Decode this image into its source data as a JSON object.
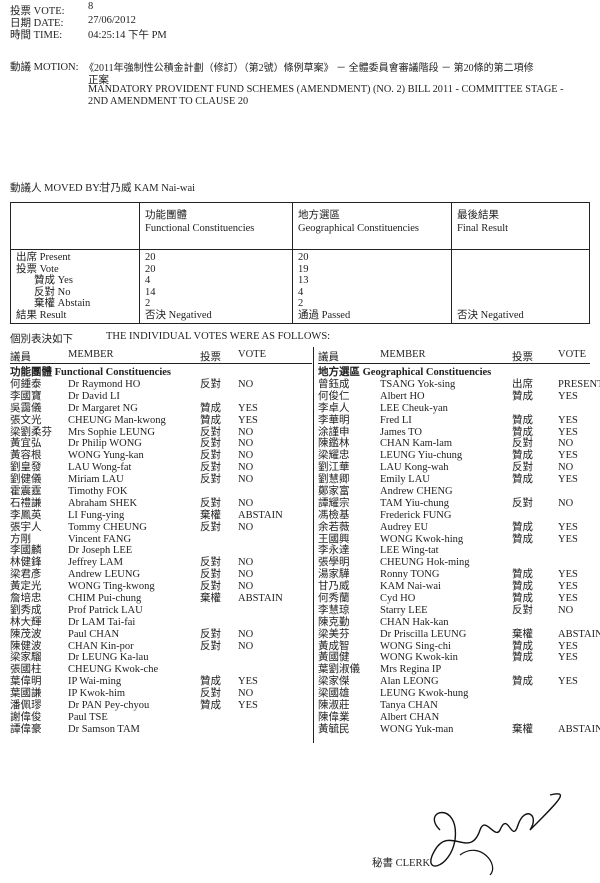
{
  "header": {
    "vote_label": "投票 VOTE:",
    "vote_value": "8",
    "date_label": "日期 DATE:",
    "date_value": "27/06/2012",
    "time_label": "時間 TIME:",
    "time_value": "04:25:14 下午 PM",
    "motion_label": "動議 MOTION:",
    "motion_zh_1": "《2011年強制性公積金計劃（修訂）（第2號）條例草案》 － 全體委員會審議階段 － 第20條的第二項修",
    "motion_zh_2": "正案",
    "motion_en_1": "MANDATORY PROVIDENT FUND SCHEMES (AMENDMENT) (NO. 2) BILL 2011 - COMMITTEE STAGE -",
    "motion_en_2": "2ND AMENDMENT TO CLAUSE 20",
    "moved_by_label": "動議人 MOVED BY:",
    "moved_by_value": "甘乃威   KAM Nai-wai"
  },
  "summary": {
    "col_fc_zh": "功能團體",
    "col_fc_en": "Functional Constituencies",
    "col_gc_zh": "地方選區",
    "col_gc_en": "Geographical Constituencies",
    "col_final_zh": "最後結果",
    "col_final_en": "Final Result",
    "row_labels": [
      "出席 Present",
      "投票 Vote",
      "贊成 Yes",
      "反對 No",
      "棄權 Abstain",
      "結果 Result"
    ],
    "fc": [
      "20",
      "20",
      "4",
      "14",
      "2",
      "否決 Negatived"
    ],
    "gc": [
      "20",
      "19",
      "13",
      "4",
      "2",
      "通過 Passed"
    ],
    "final": "否決 Negatived"
  },
  "individual_zh": "個別表決如下",
  "individual_en": "THE INDIVIDUAL VOTES WERE AS FOLLOWS:",
  "list_headers": {
    "member_zh": "議員",
    "member_en": "MEMBER",
    "vote_zh": "投票",
    "vote_en": "VOTE"
  },
  "functional": {
    "title": "功能團體 Functional Constituencies",
    "rows": [
      [
        "何鍾泰",
        "Dr Raymond HO",
        "反對",
        "NO"
      ],
      [
        "李國寶",
        "Dr David LI",
        "",
        ""
      ],
      [
        "吳靄儀",
        "Dr Margaret NG",
        "贊成",
        "YES"
      ],
      [
        "張文光",
        "CHEUNG Man-kwong",
        "贊成",
        "YES"
      ],
      [
        "梁劉柔芬",
        "Mrs Sophie LEUNG",
        "反對",
        "NO"
      ],
      [
        "黃宜弘",
        "Dr Philip WONG",
        "反對",
        "NO"
      ],
      [
        "黃容根",
        "WONG Yung-kan",
        "反對",
        "NO"
      ],
      [
        "劉皇發",
        "LAU Wong-fat",
        "反對",
        "NO"
      ],
      [
        "劉健儀",
        "Miriam LAU",
        "反對",
        "NO"
      ],
      [
        "霍震霆",
        "Timothy FOK",
        "",
        ""
      ],
      [
        "石禮謙",
        "Abraham SHEK",
        "反對",
        "NO"
      ],
      [
        "李鳳英",
        "LI Fung-ying",
        "棄權",
        "ABSTAIN"
      ],
      [
        "張宇人",
        "Tommy CHEUNG",
        "反對",
        "NO"
      ],
      [
        "方剛",
        "Vincent FANG",
        "",
        ""
      ],
      [
        "李國麟",
        "Dr Joseph LEE",
        "",
        ""
      ],
      [
        "林健鋒",
        "Jeffrey LAM",
        "反對",
        "NO"
      ],
      [
        "梁君彥",
        "Andrew LEUNG",
        "反對",
        "NO"
      ],
      [
        "黃定光",
        "WONG Ting-kwong",
        "反對",
        "NO"
      ],
      [
        "詹培忠",
        "CHIM Pui-chung",
        "棄權",
        "ABSTAIN"
      ],
      [
        "劉秀成",
        "Prof Patrick LAU",
        "",
        ""
      ],
      [
        "林大輝",
        "Dr LAM Tai-fai",
        "",
        ""
      ],
      [
        "陳茂波",
        "Paul CHAN",
        "反對",
        "NO"
      ],
      [
        "陳健波",
        "CHAN Kin-por",
        "反對",
        "NO"
      ],
      [
        "梁家騮",
        "Dr LEUNG Ka-lau",
        "",
        ""
      ],
      [
        "張國柱",
        "CHEUNG Kwok-che",
        "",
        ""
      ],
      [
        "葉偉明",
        "IP Wai-ming",
        "贊成",
        "YES"
      ],
      [
        "葉國謙",
        "IP Kwok-him",
        "反對",
        "NO"
      ],
      [
        "潘佩璆",
        "Dr PAN Pey-chyou",
        "贊成",
        "YES"
      ],
      [
        "謝偉俊",
        "Paul TSE",
        "",
        ""
      ],
      [
        "譚偉豪",
        "Dr Samson TAM",
        "",
        ""
      ]
    ]
  },
  "geographical": {
    "title": "地方選區 Geographical Constituencies",
    "rows": [
      [
        "曾鈺成",
        "TSANG Yok-sing",
        "出席",
        "PRESENT"
      ],
      [
        "何俊仁",
        "Albert HO",
        "贊成",
        "YES"
      ],
      [
        "李卓人",
        "LEE Cheuk-yan",
        "",
        ""
      ],
      [
        "李華明",
        "Fred LI",
        "贊成",
        "YES"
      ],
      [
        "涂謹申",
        "James TO",
        "贊成",
        "YES"
      ],
      [
        "陳鑑林",
        "CHAN Kam-lam",
        "反對",
        "NO"
      ],
      [
        "梁耀忠",
        "LEUNG Yiu-chung",
        "贊成",
        "YES"
      ],
      [
        "劉江華",
        "LAU Kong-wah",
        "反對",
        "NO"
      ],
      [
        "劉慧卿",
        "Emily LAU",
        "贊成",
        "YES"
      ],
      [
        "鄭家富",
        "Andrew CHENG",
        "",
        ""
      ],
      [
        "譚耀宗",
        "TAM Yiu-chung",
        "反對",
        "NO"
      ],
      [
        "馮檢基",
        "Frederick FUNG",
        "",
        ""
      ],
      [
        "余若薇",
        "Audrey EU",
        "贊成",
        "YES"
      ],
      [
        "王國興",
        "WONG Kwok-hing",
        "贊成",
        "YES"
      ],
      [
        "李永達",
        "LEE Wing-tat",
        "",
        ""
      ],
      [
        "張學明",
        "CHEUNG Hok-ming",
        "",
        ""
      ],
      [
        "湯家驊",
        "Ronny TONG",
        "贊成",
        "YES"
      ],
      [
        "甘乃威",
        "KAM Nai-wai",
        "贊成",
        "YES"
      ],
      [
        "何秀蘭",
        "Cyd HO",
        "贊成",
        "YES"
      ],
      [
        "李慧琼",
        "Starry LEE",
        "反對",
        "NO"
      ],
      [
        "陳克勤",
        "CHAN Hak-kan",
        "",
        ""
      ],
      [
        "梁美芬",
        "Dr Priscilla LEUNG",
        "棄權",
        "ABSTAIN"
      ],
      [
        "黃成智",
        "WONG Sing-chi",
        "贊成",
        "YES"
      ],
      [
        "黃國健",
        "WONG Kwok-kin",
        "贊成",
        "YES"
      ],
      [
        "葉劉淑儀",
        "Mrs Regina IP",
        "",
        ""
      ],
      [
        "梁家傑",
        "Alan LEONG",
        "贊成",
        "YES"
      ],
      [
        "梁國雄",
        "LEUNG Kwok-hung",
        "",
        ""
      ],
      [
        "陳淑莊",
        "Tanya CHAN",
        "",
        ""
      ],
      [
        "陳偉業",
        "Albert CHAN",
        "",
        ""
      ],
      [
        "黃毓民",
        "WONG Yuk-man",
        "棄權",
        "ABSTAIN"
      ]
    ]
  },
  "clerk_label": "秘書 CLERK"
}
